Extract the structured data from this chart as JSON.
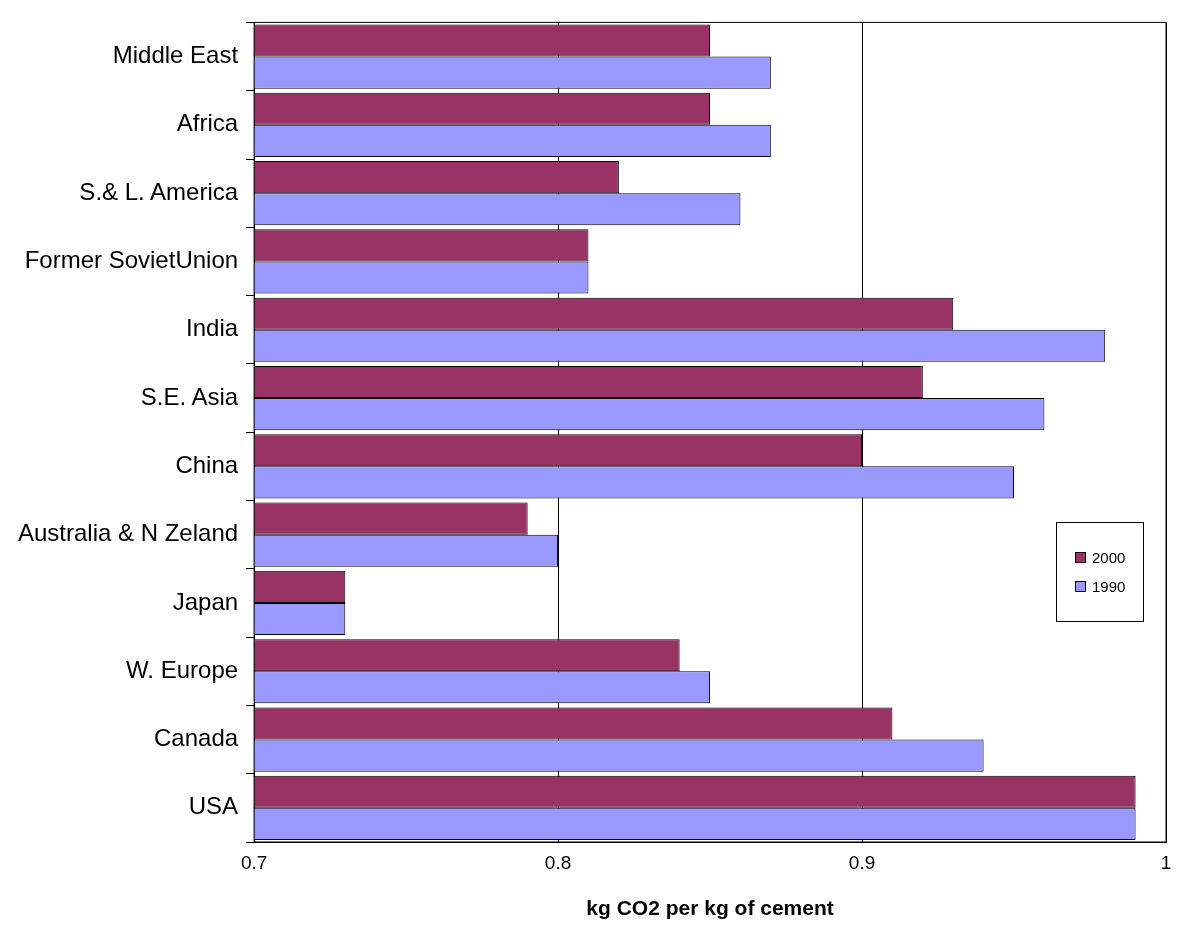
{
  "chart_data": {
    "type": "bar",
    "orientation": "horizontal",
    "xlabel": "kg CO2 per kg of cement",
    "categories": [
      "Middle East",
      "Africa",
      "S.& L. America",
      "Former SovietUnion",
      "India",
      "S.E. Asia",
      "China",
      "Australia & N Zeland",
      "Japan",
      "W. Europe",
      "Canada",
      "USA"
    ],
    "series": [
      {
        "name": "2000",
        "color": "#993366",
        "values": [
          0.85,
          0.85,
          0.82,
          0.81,
          0.93,
          0.92,
          0.9,
          0.79,
          0.73,
          0.84,
          0.91,
          0.99
        ]
      },
      {
        "name": "1990",
        "color": "#9999ff",
        "values": [
          0.87,
          0.87,
          0.86,
          0.81,
          0.98,
          0.96,
          0.95,
          0.8,
          0.73,
          0.85,
          0.94,
          0.99
        ]
      }
    ],
    "xlim": [
      0.7,
      1
    ],
    "xticks": [
      0.7,
      0.8,
      0.9,
      1
    ],
    "grid": "x",
    "legend": "right"
  }
}
